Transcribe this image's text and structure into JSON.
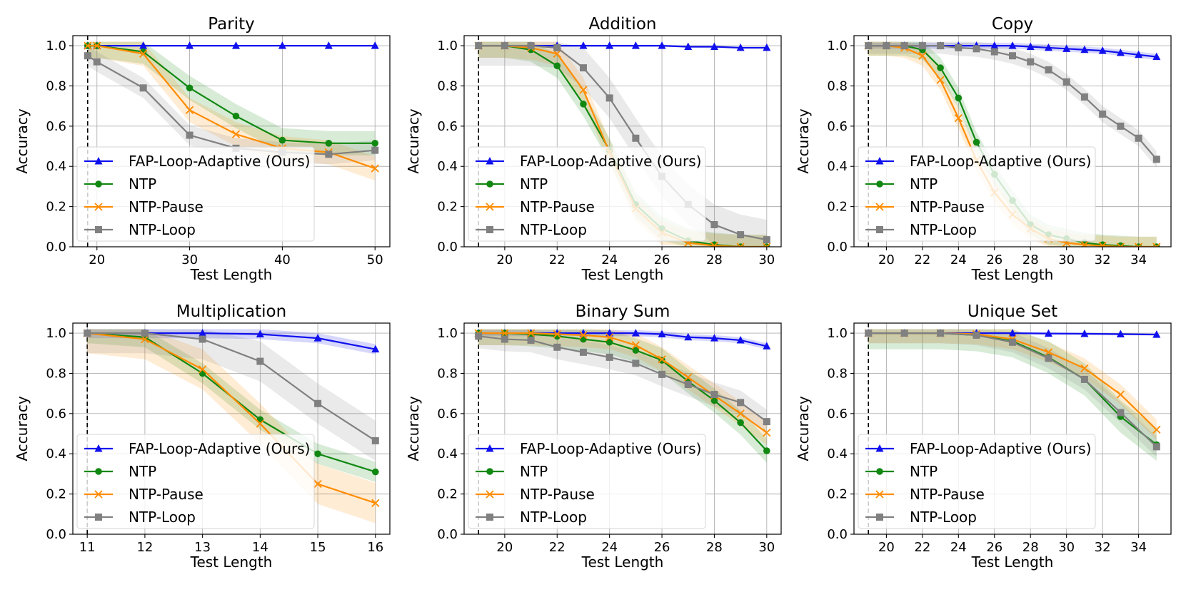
{
  "figure": {
    "y_label": "Accuracy",
    "x_label": "Test Length",
    "legend_labels": [
      "FAP-Loop-Adaptive (Ours)",
      "NTP",
      "NTP-Pause",
      "NTP-Loop"
    ]
  },
  "colors": {
    "FAP-Loop-Adaptive (Ours)": "#1010ee",
    "NTP": "#118811",
    "NTP-Pause": "#ff8c00",
    "NTP-Loop": "#808080"
  },
  "chart_data": [
    {
      "type": "line",
      "title": "Parity",
      "xlabel": "Test Length",
      "ylabel": "Accuracy",
      "xlim": [
        17.4,
        51.6
      ],
      "ylim": [
        0,
        1.05
      ],
      "train_length": 19,
      "xticks": [
        20,
        30,
        40,
        50
      ],
      "yticks": [
        0,
        0.2,
        0.4,
        0.6,
        0.8,
        1.0
      ],
      "legend": "lower-left",
      "series": [
        {
          "name": "FAP-Loop-Adaptive (Ours)",
          "marker": "triangle",
          "x": [
            19,
            20,
            25,
            30,
            35,
            40,
            45,
            50
          ],
          "values": [
            1.0,
            1.0,
            1.0,
            1.0,
            1.0,
            1.0,
            1.0,
            1.0
          ],
          "band": 0.0
        },
        {
          "name": "NTP",
          "marker": "circle",
          "x": [
            19,
            20,
            25,
            30,
            35,
            40,
            45,
            50
          ],
          "values": [
            1.0,
            1.0,
            0.97,
            0.79,
            0.65,
            0.53,
            0.515,
            0.515
          ],
          "band": 0.06
        },
        {
          "name": "NTP-Pause",
          "marker": "x",
          "x": [
            19,
            20,
            25,
            30,
            35,
            40,
            45,
            50
          ],
          "values": [
            1.0,
            1.0,
            0.96,
            0.68,
            0.56,
            0.49,
            0.47,
            0.39
          ],
          "band": 0.06
        },
        {
          "name": "NTP-Loop",
          "marker": "square",
          "x": [
            19,
            20,
            25,
            30,
            35,
            40,
            45,
            50
          ],
          "values": [
            0.95,
            0.92,
            0.79,
            0.555,
            0.49,
            0.47,
            0.46,
            0.48
          ],
          "band": 0.05
        }
      ]
    },
    {
      "type": "line",
      "title": "Addition",
      "xlabel": "Test Length",
      "ylabel": "Accuracy",
      "xlim": [
        18.45,
        30.55
      ],
      "ylim": [
        0,
        1.05
      ],
      "train_length": 19,
      "xticks": [
        20,
        22,
        24,
        26,
        28,
        30
      ],
      "yticks": [
        0,
        0.2,
        0.4,
        0.6,
        0.8,
        1.0
      ],
      "legend": "lower-left",
      "series": [
        {
          "name": "FAP-Loop-Adaptive (Ours)",
          "marker": "triangle",
          "x": [
            19,
            20,
            21,
            22,
            23,
            24,
            25,
            26,
            27,
            28,
            29,
            30
          ],
          "values": [
            1.0,
            1.0,
            1.0,
            1.0,
            1.0,
            1.0,
            1.0,
            1.0,
            0.995,
            0.995,
            0.99,
            0.99
          ],
          "band": 0.005
        },
        {
          "name": "NTP",
          "marker": "circle",
          "x": [
            19,
            20,
            21,
            22,
            23,
            24,
            25,
            26,
            27,
            28,
            29,
            30
          ],
          "values": [
            1.0,
            1.0,
            0.98,
            0.9,
            0.71,
            0.48,
            0.21,
            0.09,
            0.03,
            0.01,
            0.0,
            0.0
          ],
          "band": 0.06
        },
        {
          "name": "NTP-Pause",
          "marker": "x",
          "x": [
            19,
            20,
            21,
            22,
            23,
            24,
            25,
            26,
            27,
            28,
            29,
            30
          ],
          "values": [
            1.0,
            1.0,
            0.99,
            0.96,
            0.78,
            0.47,
            0.19,
            0.07,
            0.02,
            0.005,
            0.0,
            0.0
          ],
          "band": 0.06
        },
        {
          "name": "NTP-Loop",
          "marker": "square",
          "x": [
            19,
            20,
            21,
            22,
            23,
            24,
            25,
            26,
            27,
            28,
            29,
            30
          ],
          "values": [
            1.0,
            1.0,
            1.0,
            0.99,
            0.89,
            0.74,
            0.54,
            0.35,
            0.21,
            0.11,
            0.06,
            0.035
          ],
          "band": 0.1
        }
      ]
    },
    {
      "type": "line",
      "title": "Copy",
      "xlabel": "Test Length",
      "ylabel": "Accuracy",
      "xlim": [
        18.2,
        35.8
      ],
      "ylim": [
        0,
        1.05
      ],
      "train_length": 19,
      "xticks": [
        20,
        22,
        24,
        26,
        28,
        30,
        32,
        34
      ],
      "yticks": [
        0,
        0.2,
        0.4,
        0.6,
        0.8,
        1.0
      ],
      "legend": "lower-left",
      "series": [
        {
          "name": "FAP-Loop-Adaptive (Ours)",
          "marker": "triangle",
          "x": [
            19,
            20,
            21,
            22,
            23,
            24,
            25,
            26,
            27,
            28,
            29,
            30,
            31,
            32,
            33,
            34,
            35
          ],
          "values": [
            1.0,
            1.0,
            1.0,
            1.0,
            1.0,
            1.0,
            1.0,
            1.0,
            1.0,
            0.995,
            0.99,
            0.985,
            0.98,
            0.975,
            0.965,
            0.955,
            0.945
          ],
          "band": 0.015
        },
        {
          "name": "NTP",
          "marker": "circle",
          "x": [
            19,
            20,
            21,
            22,
            23,
            24,
            25,
            26,
            27,
            28,
            29,
            30,
            31,
            32,
            33,
            34,
            35
          ],
          "values": [
            1.0,
            1.0,
            1.0,
            0.98,
            0.89,
            0.74,
            0.52,
            0.36,
            0.23,
            0.11,
            0.06,
            0.04,
            0.02,
            0.01,
            0.005,
            0.0,
            0.0
          ],
          "band": 0.05
        },
        {
          "name": "NTP-Pause",
          "marker": "x",
          "x": [
            19,
            20,
            21,
            22,
            23,
            24,
            25,
            26,
            27,
            28,
            29,
            30,
            31,
            32,
            33,
            34,
            35
          ],
          "values": [
            1.0,
            1.0,
            0.99,
            0.95,
            0.83,
            0.64,
            0.43,
            0.27,
            0.16,
            0.09,
            0.04,
            0.02,
            0.01,
            0.005,
            0.0,
            0.0,
            0.0
          ],
          "band": 0.05
        },
        {
          "name": "NTP-Loop",
          "marker": "square",
          "x": [
            19,
            20,
            21,
            22,
            23,
            24,
            25,
            26,
            27,
            28,
            29,
            30,
            31,
            32,
            33,
            34,
            35
          ],
          "values": [
            1.0,
            1.0,
            1.0,
            1.0,
            1.0,
            0.99,
            0.985,
            0.97,
            0.95,
            0.92,
            0.88,
            0.82,
            0.745,
            0.66,
            0.6,
            0.54,
            0.435
          ],
          "band": 0.04
        }
      ]
    },
    {
      "type": "line",
      "title": "Multiplication",
      "xlabel": "Test Length",
      "ylabel": "Accuracy",
      "xlim": [
        10.75,
        16.25
      ],
      "ylim": [
        0,
        1.05
      ],
      "train_length": 11,
      "xticks": [
        11,
        12,
        13,
        14,
        15,
        16
      ],
      "yticks": [
        0,
        0.2,
        0.4,
        0.6,
        0.8,
        1.0
      ],
      "legend": "lower-left",
      "series": [
        {
          "name": "FAP-Loop-Adaptive (Ours)",
          "marker": "triangle",
          "x": [
            11,
            12,
            13,
            14,
            15,
            16
          ],
          "values": [
            1.0,
            1.0,
            1.0,
            0.995,
            0.975,
            0.92
          ],
          "band": 0.025
        },
        {
          "name": "NTP",
          "marker": "circle",
          "x": [
            11,
            12,
            13,
            14,
            15,
            16
          ],
          "values": [
            1.0,
            0.98,
            0.8,
            0.57,
            0.4,
            0.31
          ],
          "band": 0.05
        },
        {
          "name": "NTP-Pause",
          "marker": "x",
          "x": [
            11,
            12,
            13,
            14,
            15,
            16
          ],
          "values": [
            1.0,
            0.97,
            0.82,
            0.55,
            0.25,
            0.155
          ],
          "band": 0.1
        },
        {
          "name": "NTP-Loop",
          "marker": "square",
          "x": [
            11,
            12,
            13,
            14,
            15,
            16
          ],
          "values": [
            1.0,
            1.0,
            0.97,
            0.86,
            0.65,
            0.465
          ],
          "band": 0.1
        }
      ]
    },
    {
      "type": "line",
      "title": "Binary Sum",
      "xlabel": "Test Length",
      "ylabel": "Accuracy",
      "xlim": [
        18.45,
        30.55
      ],
      "ylim": [
        0,
        1.05
      ],
      "train_length": 19,
      "xticks": [
        20,
        22,
        24,
        26,
        28,
        30
      ],
      "yticks": [
        0,
        0.2,
        0.4,
        0.6,
        0.8,
        1.0
      ],
      "legend": "lower-left",
      "series": [
        {
          "name": "FAP-Loop-Adaptive (Ours)",
          "marker": "triangle",
          "x": [
            19,
            20,
            21,
            22,
            23,
            24,
            25,
            26,
            27,
            28,
            29,
            30
          ],
          "values": [
            1.0,
            1.0,
            1.0,
            1.0,
            1.0,
            1.0,
            1.0,
            0.995,
            0.98,
            0.975,
            0.965,
            0.935
          ],
          "band": 0.015
        },
        {
          "name": "NTP",
          "marker": "circle",
          "x": [
            19,
            20,
            21,
            22,
            23,
            24,
            25,
            26,
            27,
            28,
            29,
            30
          ],
          "values": [
            1.0,
            1.0,
            0.995,
            0.985,
            0.97,
            0.955,
            0.915,
            0.865,
            0.76,
            0.665,
            0.555,
            0.415
          ],
          "band": 0.06
        },
        {
          "name": "NTP-Pause",
          "marker": "x",
          "x": [
            19,
            20,
            21,
            22,
            23,
            24,
            25,
            26,
            27,
            28,
            29,
            30
          ],
          "values": [
            1.0,
            1.0,
            1.0,
            0.995,
            0.99,
            0.98,
            0.94,
            0.87,
            0.78,
            0.69,
            0.6,
            0.505
          ],
          "band": 0.06
        },
        {
          "name": "NTP-Loop",
          "marker": "square",
          "x": [
            19,
            20,
            21,
            22,
            23,
            24,
            25,
            26,
            27,
            28,
            29,
            30
          ],
          "values": [
            0.985,
            0.97,
            0.965,
            0.93,
            0.905,
            0.88,
            0.85,
            0.795,
            0.745,
            0.695,
            0.655,
            0.56
          ],
          "band": 0.06
        }
      ]
    },
    {
      "type": "line",
      "title": "Unique Set",
      "xlabel": "Test Length",
      "ylabel": "Accuracy",
      "xlim": [
        18.2,
        35.8
      ],
      "ylim": [
        0,
        1.05
      ],
      "train_length": 19,
      "xticks": [
        20,
        22,
        24,
        26,
        28,
        30,
        32,
        34
      ],
      "yticks": [
        0,
        0.2,
        0.4,
        0.6,
        0.8,
        1.0
      ],
      "legend": "lower-left",
      "series": [
        {
          "name": "FAP-Loop-Adaptive (Ours)",
          "marker": "triangle",
          "x": [
            19,
            21,
            23,
            25,
            27,
            29,
            31,
            33,
            35
          ],
          "values": [
            1.0,
            1.0,
            1.0,
            1.0,
            1.0,
            0.998,
            0.997,
            0.995,
            0.993
          ],
          "band": 0.005
        },
        {
          "name": "NTP",
          "marker": "circle",
          "x": [
            19,
            21,
            23,
            25,
            27,
            29,
            31,
            33,
            35
          ],
          "values": [
            1.0,
            1.0,
            1.0,
            0.99,
            0.96,
            0.88,
            0.77,
            0.585,
            0.445
          ],
          "band": 0.08
        },
        {
          "name": "NTP-Pause",
          "marker": "x",
          "x": [
            19,
            21,
            23,
            25,
            27,
            29,
            31,
            33,
            35
          ],
          "values": [
            1.0,
            1.0,
            1.0,
            0.995,
            0.97,
            0.905,
            0.825,
            0.695,
            0.52
          ],
          "band": 0.05
        },
        {
          "name": "NTP-Loop",
          "marker": "square",
          "x": [
            19,
            21,
            23,
            25,
            27,
            29,
            31,
            33,
            35
          ],
          "values": [
            1.0,
            1.0,
            1.0,
            0.99,
            0.955,
            0.875,
            0.77,
            0.605,
            0.435
          ],
          "band": 0.05
        }
      ]
    }
  ]
}
